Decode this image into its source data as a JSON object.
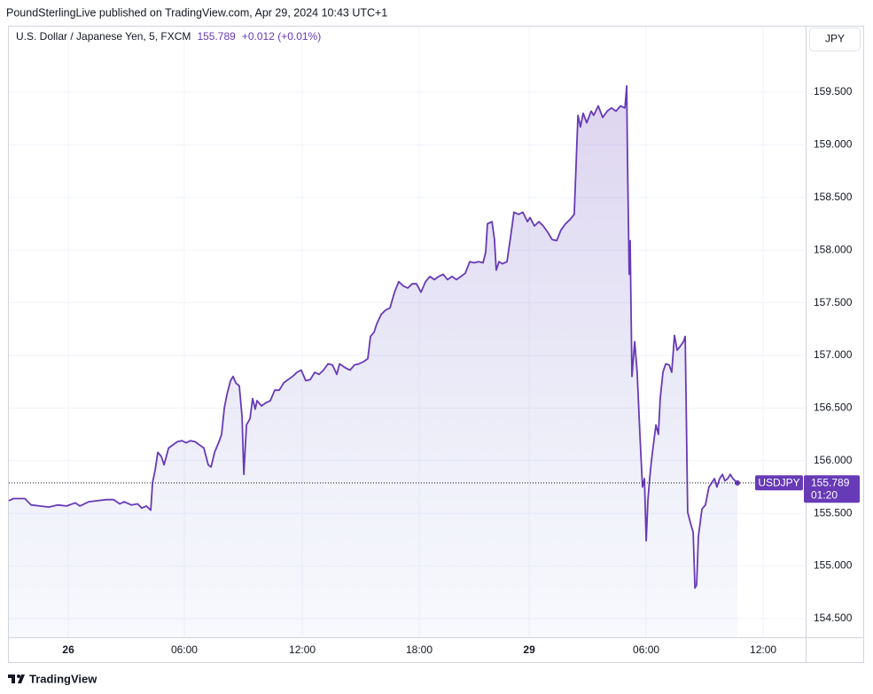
{
  "chart_data": {
    "type": "line",
    "header": "PoundSterlingLive published on TradingView.com, Apr 29, 2024 10:43 UTC+1",
    "title": "U.S. Dollar / Japanese Yen, 5, FXCM",
    "last_price": 155.789,
    "change": "+0.012 (+0.01%)",
    "currency": "JPY",
    "countdown": "01:20",
    "footer": "TradingView",
    "grid": true,
    "xlim": [
      -3.05,
      37.82
    ],
    "ylim": [
      154.323,
      160.123
    ],
    "xticks": [
      {
        "value": 0,
        "label": "26"
      },
      {
        "value": 5.95,
        "label": "06:00"
      },
      {
        "value": 12,
        "label": "12:00"
      },
      {
        "value": 18,
        "label": "18:00"
      },
      {
        "value": 23.64,
        "label": "29"
      },
      {
        "value": 29.64,
        "label": "06:00"
      },
      {
        "value": 35.64,
        "label": "12:00"
      }
    ],
    "yticks": [
      {
        "value": 154.5,
        "label": "154.500"
      },
      {
        "value": 155,
        "label": "155.000"
      },
      {
        "value": 155.5,
        "label": "155.500"
      },
      {
        "value": 156,
        "label": "156.000"
      },
      {
        "value": 156.5,
        "label": "156.500"
      },
      {
        "value": 157,
        "label": "157.000"
      },
      {
        "value": 157.5,
        "label": "157.500"
      },
      {
        "value": 158,
        "label": "158.000"
      },
      {
        "value": 158.5,
        "label": "158.500"
      },
      {
        "value": 159,
        "label": "159.000"
      },
      {
        "value": 159.5,
        "label": "159.500"
      }
    ],
    "x": [
      -3.05,
      -2.82,
      -2.23,
      -1.91,
      -1.45,
      -1.0,
      -0.55,
      -0.09,
      0.36,
      0.59,
      1.05,
      1.5,
      1.95,
      2.32,
      2.64,
      2.86,
      3.23,
      3.55,
      3.77,
      4.0,
      4.23,
      4.32,
      4.45,
      4.59,
      4.77,
      4.91,
      5.14,
      5.36,
      5.59,
      5.82,
      6.05,
      6.27,
      6.5,
      6.73,
      6.95,
      7.18,
      7.32,
      7.5,
      7.73,
      7.86,
      8.0,
      8.14,
      8.32,
      8.45,
      8.59,
      8.77,
      8.91,
      9.0,
      9.14,
      9.32,
      9.45,
      9.59,
      9.68,
      9.91,
      10.14,
      10.36,
      10.59,
      10.82,
      11.05,
      11.27,
      11.5,
      11.73,
      11.95,
      12.18,
      12.41,
      12.64,
      12.86,
      13.09,
      13.32,
      13.55,
      13.77,
      13.91,
      14.23,
      14.45,
      14.68,
      14.91,
      15.14,
      15.36,
      15.5,
      15.68,
      15.82,
      16.05,
      16.27,
      16.5,
      16.73,
      16.95,
      17.18,
      17.41,
      17.64,
      17.86,
      18.09,
      18.32,
      18.55,
      18.77,
      19.0,
      19.23,
      19.45,
      19.68,
      19.91,
      20.14,
      20.36,
      20.59,
      20.82,
      21.05,
      21.27,
      21.41,
      21.5,
      21.73,
      21.86,
      21.95,
      22.09,
      22.27,
      22.5,
      22.68,
      22.86,
      23.09,
      23.32,
      23.55,
      23.68,
      23.91,
      24.14,
      24.36,
      24.59,
      24.82,
      25.05,
      25.27,
      25.5,
      25.73,
      25.95,
      26.14,
      26.27,
      26.41,
      26.59,
      26.82,
      26.95,
      27.18,
      27.41,
      27.64,
      27.86,
      28.09,
      28.32,
      28.55,
      28.64,
      28.68,
      28.77,
      28.82,
      28.91,
      29.05,
      29.18,
      29.32,
      29.45,
      29.55,
      29.64,
      29.73,
      29.82,
      29.91,
      30.05,
      30.14,
      30.27,
      30.36,
      30.5,
      30.64,
      30.82,
      30.95,
      31.09,
      31.23,
      31.36,
      31.55,
      31.64,
      31.77,
      31.91,
      32.05,
      32.14,
      32.23,
      32.32,
      32.5,
      32.68,
      32.86,
      33.0,
      33.14,
      33.27,
      33.41,
      33.55,
      33.68,
      33.82,
      33.95,
      34.09,
      34.32
    ],
    "series": [
      {
        "name": "USDJPY",
        "color": "#673ab7",
        "values": [
          155.62,
          155.64,
          155.64,
          155.58,
          155.57,
          155.56,
          155.58,
          155.57,
          155.6,
          155.57,
          155.61,
          155.62,
          155.63,
          155.63,
          155.59,
          155.61,
          155.58,
          155.59,
          155.55,
          155.57,
          155.53,
          155.79,
          155.91,
          156.08,
          156.04,
          155.96,
          156.12,
          156.15,
          156.18,
          156.19,
          156.17,
          156.19,
          156.18,
          156.15,
          156.12,
          155.96,
          155.94,
          156.08,
          156.18,
          156.25,
          156.5,
          156.63,
          156.76,
          156.8,
          156.74,
          156.71,
          156.42,
          155.87,
          156.34,
          156.4,
          156.59,
          156.49,
          156.57,
          156.52,
          156.55,
          156.57,
          156.67,
          156.67,
          156.74,
          156.77,
          156.8,
          156.84,
          156.86,
          156.76,
          156.77,
          156.84,
          156.82,
          156.86,
          156.92,
          156.91,
          156.82,
          156.92,
          156.88,
          156.86,
          156.91,
          156.92,
          156.94,
          156.97,
          157.18,
          157.22,
          157.3,
          157.39,
          157.43,
          157.45,
          157.6,
          157.7,
          157.66,
          157.64,
          157.68,
          157.68,
          157.6,
          157.7,
          157.75,
          157.72,
          157.75,
          157.77,
          157.72,
          157.75,
          157.72,
          157.75,
          157.78,
          157.89,
          157.88,
          157.89,
          157.88,
          157.98,
          158.25,
          158.27,
          158.1,
          157.81,
          157.89,
          157.87,
          157.89,
          158.12,
          158.36,
          158.34,
          158.36,
          158.27,
          158.31,
          158.23,
          158.27,
          158.23,
          158.17,
          158.1,
          158.09,
          158.19,
          158.25,
          158.29,
          158.34,
          159.28,
          159.17,
          159.3,
          159.21,
          159.32,
          159.28,
          159.37,
          159.26,
          159.32,
          159.35,
          159.32,
          159.37,
          159.35,
          159.56,
          158.86,
          157.77,
          158.09,
          156.8,
          157.13,
          156.84,
          156.25,
          155.75,
          155.83,
          155.24,
          155.62,
          155.83,
          156.0,
          156.21,
          156.34,
          156.25,
          156.59,
          156.84,
          156.92,
          156.91,
          156.84,
          157.19,
          157.05,
          157.08,
          157.13,
          157.18,
          155.51,
          155.41,
          155.32,
          154.79,
          154.82,
          155.28,
          155.54,
          155.58,
          155.75,
          155.79,
          155.83,
          155.75,
          155.83,
          155.87,
          155.81,
          155.83,
          155.87,
          155.83,
          155.789
        ]
      }
    ]
  }
}
